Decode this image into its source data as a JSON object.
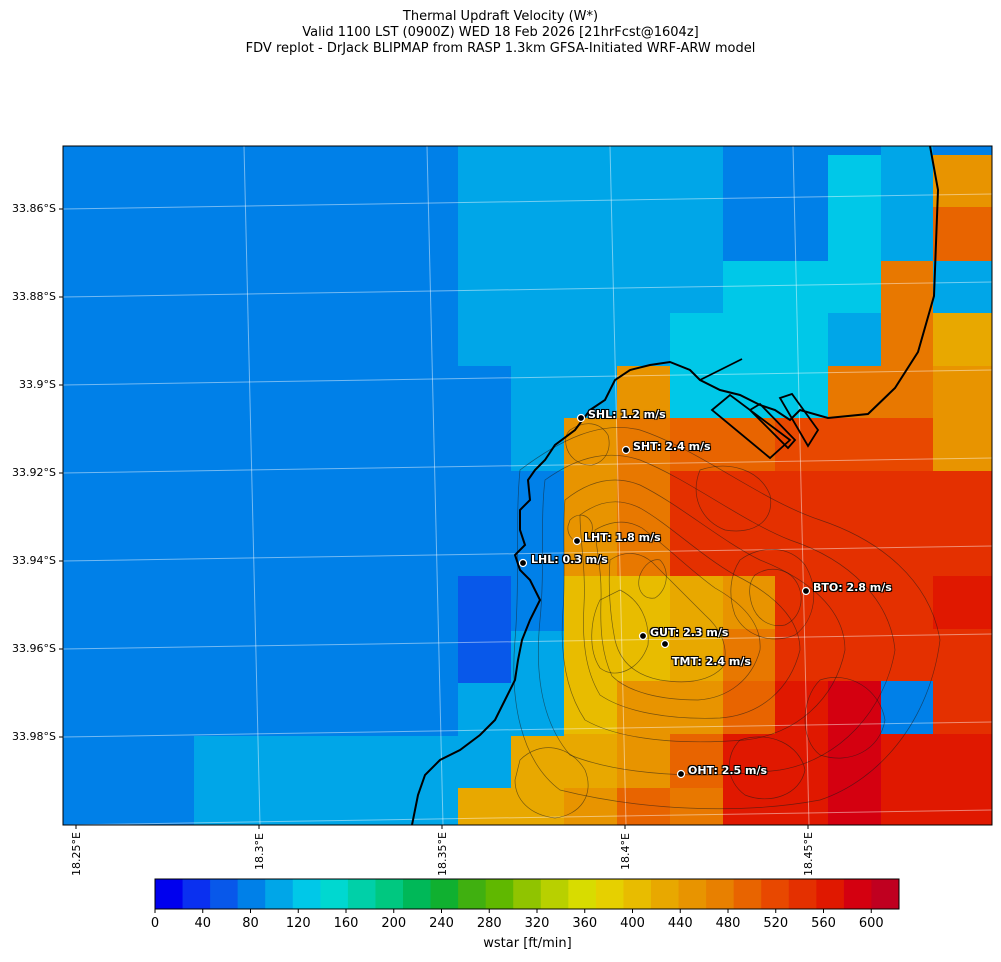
{
  "title": {
    "line1": "Thermal Updraft Velocity (W*)",
    "line2": "Valid 1100 LST (0900Z) WED 18 Feb 2026 [21hrFcst@1604z]",
    "line3": "FDV replot - DrJack BLIPMAP from RASP 1.3km GFSA-Initiated WRF-ARW model"
  },
  "lat_ticks": [
    "33.86°S",
    "33.88°S",
    "33.9°S",
    "33.92°S",
    "33.94°S",
    "33.96°S",
    "33.98°S"
  ],
  "lon_ticks": [
    "18.25°E",
    "18.3°E",
    "18.35°E",
    "18.4°E",
    "18.45°E"
  ],
  "sites": [
    {
      "label": "SHL: 1.2 m/s"
    },
    {
      "label": "SHT: 2.4 m/s"
    },
    {
      "label": "LHT: 1.8 m/s"
    },
    {
      "label": "LHL: 0.3 m/s"
    },
    {
      "label": "BTO: 2.8 m/s"
    },
    {
      "label": "GUT: 2.3 m/s"
    },
    {
      "label": "TMT: 2.4 m/s"
    },
    {
      "label": "OHT: 2.5 m/s"
    }
  ],
  "colorbar": {
    "label": "wstar [ft/min]",
    "ticks": [
      "0",
      "40",
      "80",
      "120",
      "160",
      "200",
      "240",
      "280",
      "320",
      "360",
      "400",
      "440",
      "480",
      "520",
      "560",
      "600"
    ],
    "colors": [
      "#0000ee",
      "#0a30f0",
      "#0858ea",
      "#0080e8",
      "#00a6e8",
      "#00c8e8",
      "#00d8d0",
      "#00d0a8",
      "#00c880",
      "#00b858",
      "#10b030",
      "#40b010",
      "#60b800",
      "#90c400",
      "#b8d000",
      "#d8dc00",
      "#e6d000",
      "#e8bc00",
      "#e8a800",
      "#e89400",
      "#e88000",
      "#e86400",
      "#e84800",
      "#e43000",
      "#e01800",
      "#d40010",
      "#c00020"
    ]
  }
}
